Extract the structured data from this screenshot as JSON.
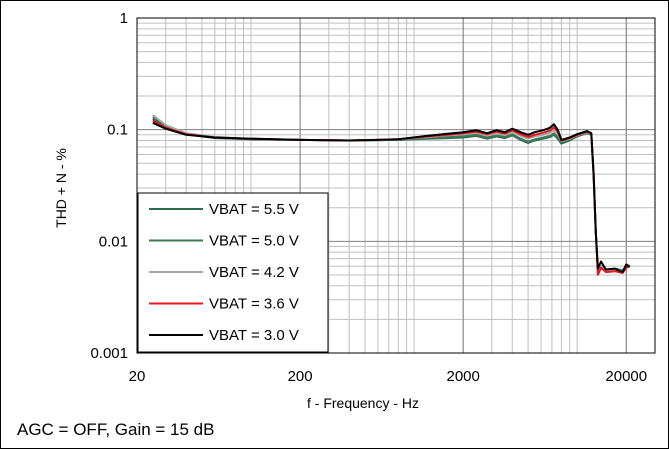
{
  "footnote": "AGC = OFF, Gain = 15 dB",
  "chart_data": {
    "type": "line",
    "title": "",
    "xlabel": "f - Frequency - Hz",
    "ylabel": "THD + N - %",
    "x_scale": "log",
    "y_scale": "log",
    "xlim": [
      20,
      30000
    ],
    "ylim": [
      0.001,
      1
    ],
    "x_ticks": [
      20,
      200,
      2000,
      20000
    ],
    "x_tick_labels": [
      "20",
      "200",
      "2000",
      "20000"
    ],
    "y_ticks": [
      0.001,
      0.01,
      0.1,
      1
    ],
    "y_tick_labels": [
      "0.001",
      "0.01",
      "0.1",
      "1"
    ],
    "grid": true,
    "legend_position": "bottom-left",
    "series": [
      {
        "name": "VBAT = 5.5 V",
        "color": "#2e6b4e",
        "points": [
          [
            25,
            0.125
          ],
          [
            30,
            0.106
          ],
          [
            40,
            0.091
          ],
          [
            60,
            0.084
          ],
          [
            100,
            0.082
          ],
          [
            200,
            0.081
          ],
          [
            400,
            0.08
          ],
          [
            800,
            0.081
          ],
          [
            1200,
            0.083
          ],
          [
            1600,
            0.084
          ],
          [
            2000,
            0.085
          ],
          [
            2400,
            0.088
          ],
          [
            2800,
            0.083
          ],
          [
            3200,
            0.087
          ],
          [
            3600,
            0.084
          ],
          [
            4000,
            0.089
          ],
          [
            4500,
            0.081
          ],
          [
            5000,
            0.076
          ],
          [
            5500,
            0.08
          ],
          [
            6200,
            0.083
          ],
          [
            6800,
            0.086
          ],
          [
            7200,
            0.09
          ],
          [
            7600,
            0.083
          ],
          [
            8000,
            0.075
          ],
          [
            9000,
            0.08
          ],
          [
            10000,
            0.087
          ],
          [
            11500,
            0.093
          ],
          [
            12200,
            0.09
          ],
          [
            12600,
            0.04
          ],
          [
            13000,
            0.012
          ],
          [
            13400,
            0.0056
          ],
          [
            14000,
            0.006
          ],
          [
            15000,
            0.0055
          ],
          [
            17000,
            0.0057
          ],
          [
            19000,
            0.0055
          ],
          [
            20000,
            0.006
          ],
          [
            21000,
            0.006
          ]
        ]
      },
      {
        "name": "VBAT = 5.0 V",
        "color": "#3c7a5a",
        "points": [
          [
            25,
            0.13
          ],
          [
            30,
            0.108
          ],
          [
            40,
            0.092
          ],
          [
            60,
            0.085
          ],
          [
            100,
            0.082
          ],
          [
            200,
            0.081
          ],
          [
            400,
            0.08
          ],
          [
            800,
            0.081
          ],
          [
            1200,
            0.084
          ],
          [
            1600,
            0.086
          ],
          [
            2000,
            0.087
          ],
          [
            2400,
            0.09
          ],
          [
            2800,
            0.085
          ],
          [
            3200,
            0.089
          ],
          [
            3600,
            0.086
          ],
          [
            4000,
            0.091
          ],
          [
            4500,
            0.083
          ],
          [
            5000,
            0.078
          ],
          [
            5500,
            0.082
          ],
          [
            6200,
            0.085
          ],
          [
            6800,
            0.088
          ],
          [
            7200,
            0.093
          ],
          [
            7600,
            0.086
          ],
          [
            8000,
            0.077
          ],
          [
            9000,
            0.082
          ],
          [
            10000,
            0.088
          ],
          [
            11500,
            0.094
          ],
          [
            12200,
            0.09
          ],
          [
            12600,
            0.04
          ],
          [
            13000,
            0.012
          ],
          [
            13400,
            0.0055
          ],
          [
            14000,
            0.006
          ],
          [
            15000,
            0.0055
          ],
          [
            17000,
            0.0056
          ],
          [
            19000,
            0.0055
          ],
          [
            20000,
            0.0059
          ],
          [
            21000,
            0.006
          ]
        ]
      },
      {
        "name": "VBAT = 4.2 V",
        "color": "#a6a6a6",
        "points": [
          [
            25,
            0.135
          ],
          [
            30,
            0.11
          ],
          [
            40,
            0.093
          ],
          [
            60,
            0.086
          ],
          [
            100,
            0.083
          ],
          [
            200,
            0.081
          ],
          [
            400,
            0.08
          ],
          [
            800,
            0.082
          ],
          [
            1200,
            0.086
          ],
          [
            1600,
            0.089
          ],
          [
            2000,
            0.091
          ],
          [
            2400,
            0.094
          ],
          [
            2800,
            0.089
          ],
          [
            3200,
            0.094
          ],
          [
            3600,
            0.09
          ],
          [
            4000,
            0.096
          ],
          [
            4500,
            0.088
          ],
          [
            5000,
            0.083
          ],
          [
            5500,
            0.087
          ],
          [
            6200,
            0.09
          ],
          [
            6800,
            0.094
          ],
          [
            7200,
            0.1
          ],
          [
            7600,
            0.092
          ],
          [
            8000,
            0.079
          ],
          [
            9000,
            0.083
          ],
          [
            10000,
            0.089
          ],
          [
            11500,
            0.095
          ],
          [
            12200,
            0.091
          ],
          [
            12600,
            0.04
          ],
          [
            13000,
            0.012
          ],
          [
            13400,
            0.0053
          ],
          [
            14000,
            0.006
          ],
          [
            15000,
            0.0054
          ],
          [
            17000,
            0.0056
          ],
          [
            19000,
            0.0054
          ],
          [
            20000,
            0.006
          ],
          [
            21000,
            0.0061
          ]
        ]
      },
      {
        "name": "VBAT = 3.6 V",
        "color": "#e8141e",
        "points": [
          [
            25,
            0.12
          ],
          [
            30,
            0.104
          ],
          [
            40,
            0.091
          ],
          [
            60,
            0.085
          ],
          [
            100,
            0.083
          ],
          [
            200,
            0.081
          ],
          [
            400,
            0.08
          ],
          [
            800,
            0.082
          ],
          [
            1200,
            0.087
          ],
          [
            1600,
            0.09
          ],
          [
            2000,
            0.093
          ],
          [
            2400,
            0.096
          ],
          [
            2800,
            0.091
          ],
          [
            3200,
            0.096
          ],
          [
            3600,
            0.092
          ],
          [
            4000,
            0.099
          ],
          [
            4500,
            0.091
          ],
          [
            5000,
            0.086
          ],
          [
            5500,
            0.09
          ],
          [
            6200,
            0.094
          ],
          [
            6800,
            0.098
          ],
          [
            7200,
            0.105
          ],
          [
            7600,
            0.096
          ],
          [
            8000,
            0.08
          ],
          [
            9000,
            0.084
          ],
          [
            10000,
            0.09
          ],
          [
            11500,
            0.096
          ],
          [
            12200,
            0.092
          ],
          [
            12600,
            0.04
          ],
          [
            13000,
            0.012
          ],
          [
            13400,
            0.005
          ],
          [
            14000,
            0.0058
          ],
          [
            15000,
            0.0053
          ],
          [
            17000,
            0.0054
          ],
          [
            19000,
            0.0052
          ],
          [
            20000,
            0.0058
          ],
          [
            21000,
            0.006
          ]
        ]
      },
      {
        "name": "VBAT = 3.0 V",
        "color": "#000000",
        "points": [
          [
            25,
            0.115
          ],
          [
            30,
            0.102
          ],
          [
            40,
            0.09
          ],
          [
            60,
            0.085
          ],
          [
            100,
            0.083
          ],
          [
            200,
            0.081
          ],
          [
            400,
            0.08
          ],
          [
            800,
            0.082
          ],
          [
            1200,
            0.088
          ],
          [
            1600,
            0.092
          ],
          [
            2000,
            0.095
          ],
          [
            2400,
            0.099
          ],
          [
            2800,
            0.093
          ],
          [
            3200,
            0.099
          ],
          [
            3600,
            0.095
          ],
          [
            4000,
            0.102
          ],
          [
            4500,
            0.095
          ],
          [
            5000,
            0.09
          ],
          [
            5500,
            0.095
          ],
          [
            6200,
            0.099
          ],
          [
            6800,
            0.104
          ],
          [
            7200,
            0.112
          ],
          [
            7600,
            0.1
          ],
          [
            8000,
            0.081
          ],
          [
            9000,
            0.085
          ],
          [
            10000,
            0.091
          ],
          [
            11500,
            0.097
          ],
          [
            12200,
            0.093
          ],
          [
            12600,
            0.04
          ],
          [
            13000,
            0.012
          ],
          [
            13400,
            0.0057
          ],
          [
            14000,
            0.0066
          ],
          [
            15000,
            0.0056
          ],
          [
            17000,
            0.0057
          ],
          [
            19000,
            0.0053
          ],
          [
            20000,
            0.0062
          ],
          [
            21000,
            0.0059
          ]
        ]
      }
    ]
  }
}
